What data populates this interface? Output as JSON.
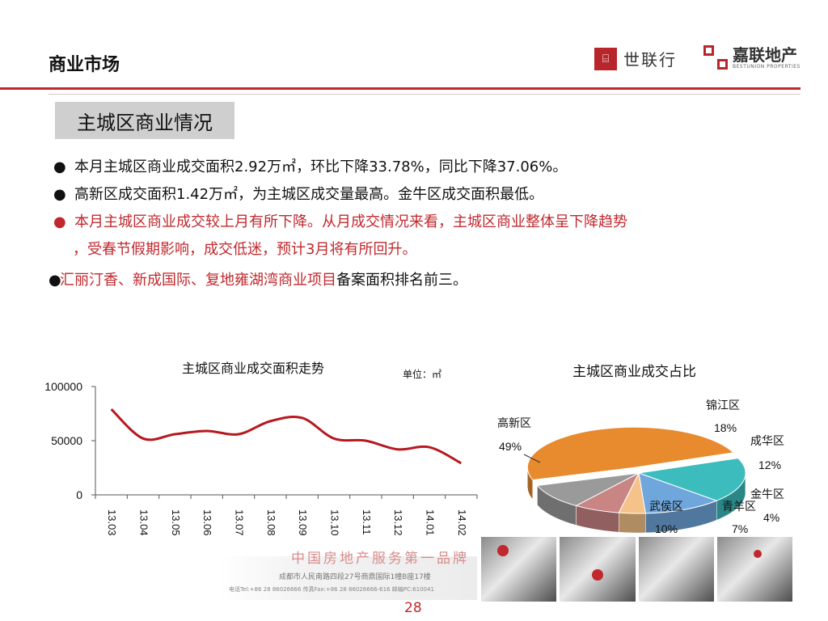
{
  "header": {
    "title": "商业市场",
    "logo_left": "世联行",
    "logo_right_cn": "嘉联地产",
    "logo_right_en": "BESTUNION PROPERTIES"
  },
  "section_title": "主城区商业情况",
  "bullets": [
    "本月主城区商业成交面积2.92万㎡，环比下降33.78%，同比下降37.06%。",
    "高新区成交面积1.42万㎡，为主城区成交量最高。金牛区成交面积最低。",
    "本月主城区商业成交较上月有所下降。从月成交情况来看，主城区商业整体呈下降趋势",
    "，受春节假期影响，成交低迷，预计3月将有所回升。"
  ],
  "bullet_last": {
    "red_part": "汇丽汀香、新成国际、复地雍湖湾商业项目",
    "rest": "备案面积排名前三。"
  },
  "colors": {
    "accent": "#c0282e",
    "line": "#b5191f"
  },
  "chart_data": [
    {
      "type": "line",
      "title": "主城区商业成交面积走势",
      "unit": "单位：㎡",
      "categories": [
        "13.03",
        "13.04",
        "13.05",
        "13.06",
        "13.07",
        "13.08",
        "13.09",
        "13.10",
        "13.11",
        "13.12",
        "14.01",
        "14.02"
      ],
      "values": [
        79000,
        52000,
        56000,
        59000,
        56000,
        68000,
        71000,
        52000,
        50000,
        42000,
        44000,
        29200
      ],
      "ylim": [
        0,
        100000
      ],
      "yticks": [
        0,
        50000,
        100000
      ],
      "ytick_labels": [
        "0",
        "50000",
        "100000"
      ],
      "grid": false
    },
    {
      "type": "pie",
      "title": "主城区商业成交占比",
      "slices": [
        {
          "label": "高新区",
          "pct_label": "49%",
          "value": 49,
          "color": "#e88a2e"
        },
        {
          "label": "锦江区",
          "pct_label": "18%",
          "value": 18,
          "color": "#3cbcbc"
        },
        {
          "label": "成华区",
          "pct_label": "12%",
          "value": 12,
          "color": "#6fa6dc"
        },
        {
          "label": "金牛区",
          "pct_label": "4%",
          "value": 4,
          "color": "#f5c28a"
        },
        {
          "label": "青羊区",
          "pct_label": "7%",
          "value": 7,
          "color": "#c98484"
        },
        {
          "label": "武侯区",
          "pct_label": "10%",
          "value": 10,
          "color": "#9a9a9a"
        }
      ]
    }
  ],
  "footer": {
    "slogan": "中国房地产服务第一品牌",
    "address": "成都市人民南路四段27号商鼎国际1幢B座17楼",
    "contact": "电话Tel:+86 28 86026666 传真Fax:+86 28 86026666-616 邮编PC:610041",
    "page_number": "28"
  }
}
